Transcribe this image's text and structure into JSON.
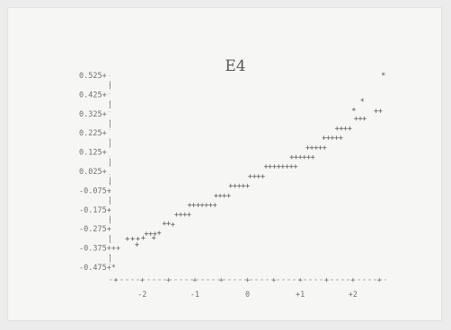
{
  "chart_data": {
    "type": "scatter",
    "title": "E4",
    "xlabel": "",
    "ylabel": "",
    "xlim": [
      -2.55,
      2.6
    ],
    "ylim": [
      -0.475,
      0.525
    ],
    "grid": false,
    "legend": "none",
    "y_ticks": [
      {
        "value": 0.525,
        "label": "0.525+"
      },
      {
        "value": 0.425,
        "label": "0.425+"
      },
      {
        "value": 0.325,
        "label": "0.325+"
      },
      {
        "value": 0.225,
        "label": "0.225+"
      },
      {
        "value": 0.125,
        "label": "0.125+"
      },
      {
        "value": 0.025,
        "label": "0.025+"
      },
      {
        "value": -0.075,
        "label": "-0.075+"
      },
      {
        "value": -0.175,
        "label": "-0.175+"
      },
      {
        "value": -0.275,
        "label": "-0.275+"
      },
      {
        "value": -0.375,
        "label": "-0.375+++"
      },
      {
        "value": -0.475,
        "label": "-0.475+*"
      }
    ],
    "x_ticks": [
      {
        "value": -2,
        "label": "-2"
      },
      {
        "value": -1,
        "label": "-1"
      },
      {
        "value": 0,
        "label": "0"
      },
      {
        "value": 1,
        "label": "+1"
      },
      {
        "value": 2,
        "label": "+2"
      }
    ],
    "points": [
      {
        "x": -2.28,
        "y": -0.325,
        "label": "+"
      },
      {
        "x": -2.18,
        "y": -0.325,
        "label": "+"
      },
      {
        "x": -2.08,
        "y": -0.325,
        "label": "+"
      },
      {
        "x": -1.98,
        "y": -0.32,
        "label": "+"
      },
      {
        "x": -2.1,
        "y": -0.355,
        "label": "+"
      },
      {
        "x": -1.92,
        "y": -0.3,
        "label": "+"
      },
      {
        "x": -1.84,
        "y": -0.3,
        "label": "+"
      },
      {
        "x": -1.76,
        "y": -0.3,
        "label": "+"
      },
      {
        "x": -1.68,
        "y": -0.295,
        "label": "+"
      },
      {
        "x": -1.78,
        "y": -0.32,
        "label": "+"
      },
      {
        "x": -1.58,
        "y": -0.245,
        "label": "+"
      },
      {
        "x": -1.5,
        "y": -0.245,
        "label": "+"
      },
      {
        "x": -1.42,
        "y": -0.25,
        "label": "+"
      },
      {
        "x": -1.35,
        "y": -0.2,
        "label": "+"
      },
      {
        "x": -1.27,
        "y": -0.2,
        "label": "+"
      },
      {
        "x": -1.19,
        "y": -0.2,
        "label": "+"
      },
      {
        "x": -1.11,
        "y": -0.2,
        "label": "+"
      },
      {
        "x": -1.1,
        "y": -0.15,
        "label": "+"
      },
      {
        "x": -1.02,
        "y": -0.15,
        "label": "+"
      },
      {
        "x": -0.94,
        "y": -0.15,
        "label": "+"
      },
      {
        "x": -0.86,
        "y": -0.15,
        "label": "+"
      },
      {
        "x": -0.78,
        "y": -0.15,
        "label": "+"
      },
      {
        "x": -0.7,
        "y": -0.15,
        "label": "+"
      },
      {
        "x": -0.62,
        "y": -0.15,
        "label": "+"
      },
      {
        "x": -0.6,
        "y": -0.1,
        "label": "+"
      },
      {
        "x": -0.52,
        "y": -0.1,
        "label": "+"
      },
      {
        "x": -0.44,
        "y": -0.1,
        "label": "+"
      },
      {
        "x": -0.36,
        "y": -0.1,
        "label": "+"
      },
      {
        "x": -0.32,
        "y": -0.05,
        "label": "+"
      },
      {
        "x": -0.24,
        "y": -0.05,
        "label": "+"
      },
      {
        "x": -0.16,
        "y": -0.05,
        "label": "+"
      },
      {
        "x": -0.08,
        "y": -0.05,
        "label": "+"
      },
      {
        "x": 0.0,
        "y": -0.05,
        "label": "+"
      },
      {
        "x": 0.05,
        "y": 0.0,
        "label": "+"
      },
      {
        "x": 0.13,
        "y": 0.0,
        "label": "+"
      },
      {
        "x": 0.21,
        "y": 0.0,
        "label": "+"
      },
      {
        "x": 0.29,
        "y": 0.0,
        "label": "+"
      },
      {
        "x": 0.35,
        "y": 0.05,
        "label": "+"
      },
      {
        "x": 0.43,
        "y": 0.05,
        "label": "+"
      },
      {
        "x": 0.51,
        "y": 0.05,
        "label": "+"
      },
      {
        "x": 0.59,
        "y": 0.05,
        "label": "+"
      },
      {
        "x": 0.67,
        "y": 0.05,
        "label": "+"
      },
      {
        "x": 0.75,
        "y": 0.05,
        "label": "+"
      },
      {
        "x": 0.83,
        "y": 0.05,
        "label": "+"
      },
      {
        "x": 0.91,
        "y": 0.05,
        "label": "+"
      },
      {
        "x": 0.84,
        "y": 0.1,
        "label": "+"
      },
      {
        "x": 0.92,
        "y": 0.1,
        "label": "+"
      },
      {
        "x": 1.0,
        "y": 0.1,
        "label": "+"
      },
      {
        "x": 1.08,
        "y": 0.1,
        "label": "+"
      },
      {
        "x": 1.16,
        "y": 0.1,
        "label": "+"
      },
      {
        "x": 1.24,
        "y": 0.1,
        "label": "+"
      },
      {
        "x": 1.14,
        "y": 0.15,
        "label": "+"
      },
      {
        "x": 1.22,
        "y": 0.15,
        "label": "+"
      },
      {
        "x": 1.3,
        "y": 0.15,
        "label": "+"
      },
      {
        "x": 1.38,
        "y": 0.15,
        "label": "+"
      },
      {
        "x": 1.46,
        "y": 0.15,
        "label": "+"
      },
      {
        "x": 1.45,
        "y": 0.2,
        "label": "+"
      },
      {
        "x": 1.53,
        "y": 0.2,
        "label": "+"
      },
      {
        "x": 1.61,
        "y": 0.2,
        "label": "+"
      },
      {
        "x": 1.69,
        "y": 0.2,
        "label": "+"
      },
      {
        "x": 1.77,
        "y": 0.2,
        "label": "+"
      },
      {
        "x": 1.7,
        "y": 0.25,
        "label": "+"
      },
      {
        "x": 1.78,
        "y": 0.25,
        "label": "+"
      },
      {
        "x": 1.86,
        "y": 0.25,
        "label": "+"
      },
      {
        "x": 1.94,
        "y": 0.25,
        "label": "+"
      },
      {
        "x": 2.02,
        "y": 0.34,
        "label": "*"
      },
      {
        "x": 2.06,
        "y": 0.3,
        "label": "+"
      },
      {
        "x": 2.14,
        "y": 0.3,
        "label": "+"
      },
      {
        "x": 2.22,
        "y": 0.3,
        "label": "+"
      },
      {
        "x": 2.18,
        "y": 0.39,
        "label": "*"
      },
      {
        "x": 2.44,
        "y": 0.34,
        "label": "+"
      },
      {
        "x": 2.52,
        "y": 0.34,
        "label": "+"
      },
      {
        "x": 2.58,
        "y": 0.525,
        "label": "*"
      }
    ]
  }
}
